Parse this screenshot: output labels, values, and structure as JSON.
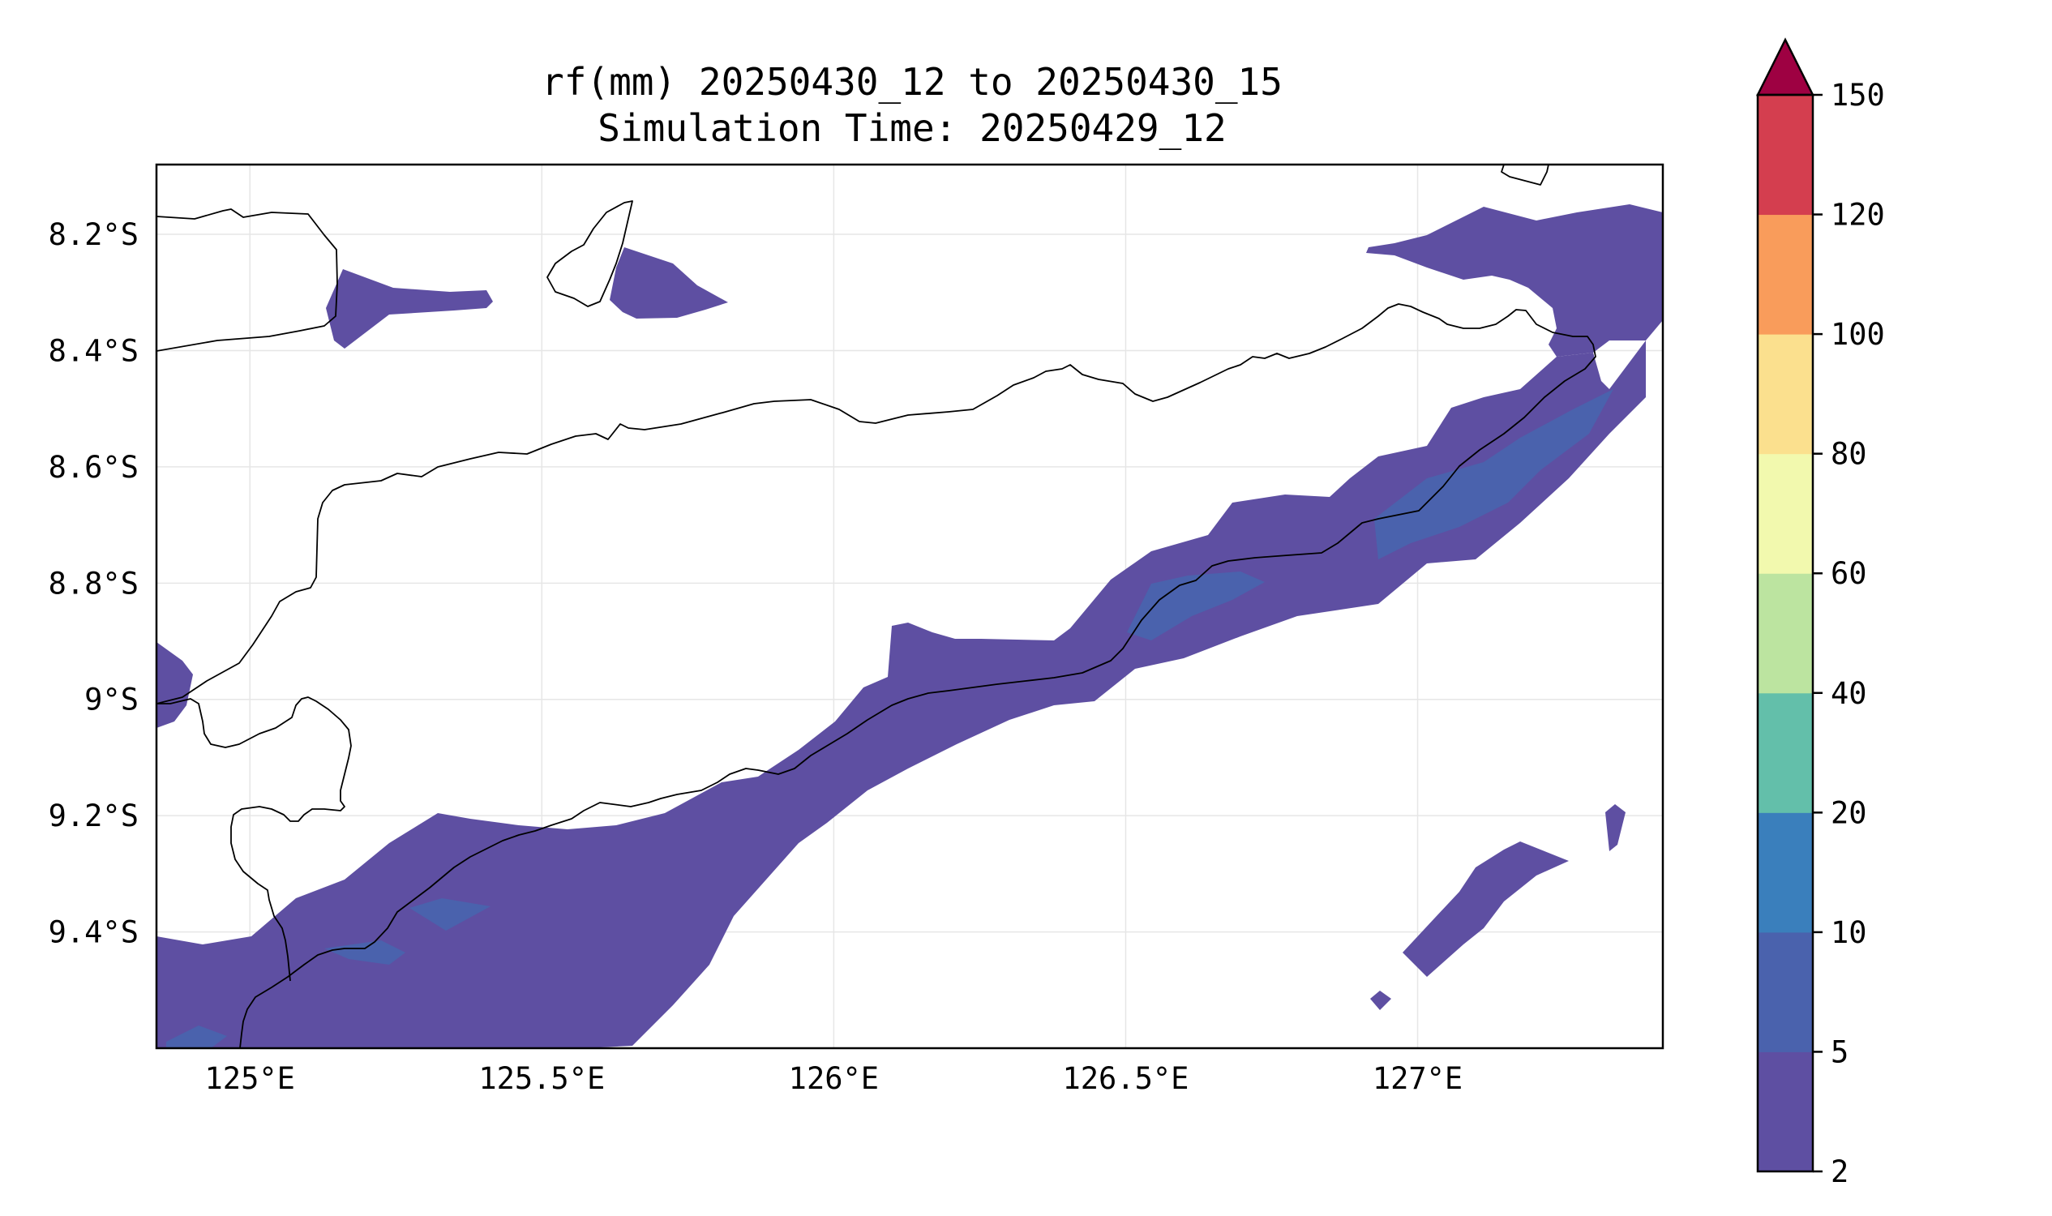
{
  "title": {
    "line1": "rf(mm) 20250430_12 to 20250430_15",
    "line2": "Simulation Time: 20250429_12"
  },
  "map": {
    "lon_range": [
      124.84,
      127.42
    ],
    "lat_range": [
      -9.6,
      -8.08
    ],
    "x_ticks": [
      {
        "value": 125.0,
        "label": "125°E"
      },
      {
        "value": 125.5,
        "label": "125.5°E"
      },
      {
        "value": 126.0,
        "label": "126°E"
      },
      {
        "value": 126.5,
        "label": "126.5°E"
      },
      {
        "value": 127.0,
        "label": "127°E"
      }
    ],
    "y_ticks": [
      {
        "value": -8.2,
        "label": "8.2°S"
      },
      {
        "value": -8.4,
        "label": "8.4°S"
      },
      {
        "value": -8.6,
        "label": "8.6°S"
      },
      {
        "value": -8.8,
        "label": "8.8°S"
      },
      {
        "value": -9.0,
        "label": "9°S"
      },
      {
        "value": -9.2,
        "label": "9.2°S"
      },
      {
        "value": -9.4,
        "label": "9.4°S"
      }
    ],
    "grid": true
  },
  "colorbar": {
    "levels": [
      2,
      5,
      10,
      20,
      40,
      60,
      80,
      100,
      120,
      150
    ],
    "labels": [
      "2",
      "5",
      "10",
      "20",
      "40",
      "60",
      "80",
      "100",
      "120",
      "150"
    ],
    "colors": [
      "#5e4fa2",
      "#4a62ad",
      "#3a7fbc",
      "#63bfaa",
      "#bce4a0",
      "#f2f9ae",
      "#fbe08e",
      "#f99c5b",
      "#d43e4f"
    ],
    "extend_color": "#9e0142",
    "extend": "max"
  },
  "colors": {
    "rain_2_5": "#5e4fa2",
    "rain_5_10": "#4a62ad"
  }
}
